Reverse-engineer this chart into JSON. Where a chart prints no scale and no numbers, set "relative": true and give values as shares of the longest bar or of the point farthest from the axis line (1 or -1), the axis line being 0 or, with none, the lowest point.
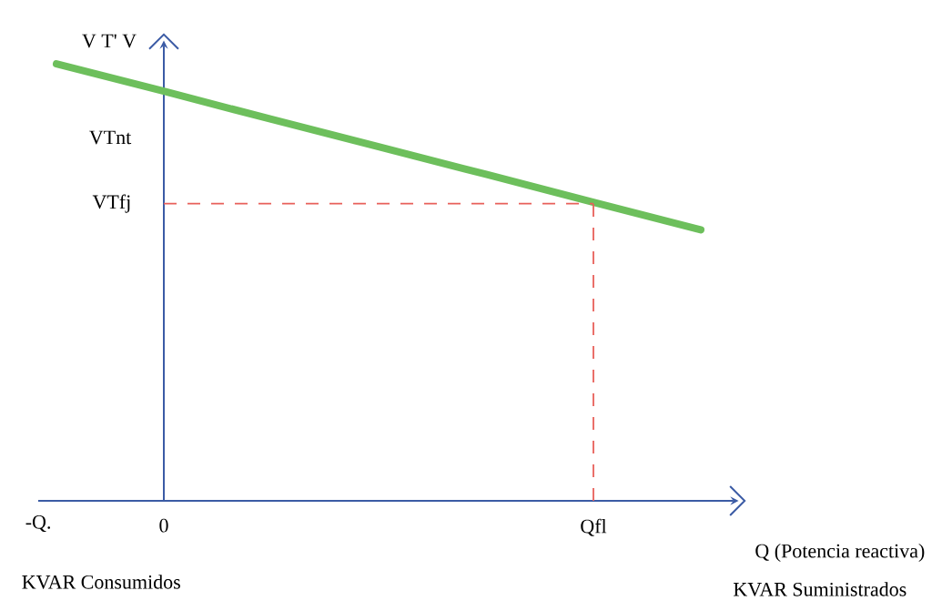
{
  "chart_data": {
    "type": "line",
    "relative": true,
    "ylabel": "V T' V",
    "xlabel": "Q  (Potencia reactiva)",
    "categories": [
      null,
      "0",
      null,
      null,
      null,
      "Qfl",
      null
    ],
    "series": [
      {
        "color": "#6dbf5c",
        "values": [
          1,
          0.937,
          0.873,
          0.81,
          0.747,
          0.683,
          0.62
        ]
      }
    ],
    "ref_lines": [
      {
        "axis": "y",
        "value": 0.68,
        "label": "VTfj",
        "color": "#e8605a",
        "line_style": "dashed"
      },
      {
        "axis": "x",
        "value": "Qfl",
        "color": "#e8605a",
        "line_style": "dashed"
      }
    ],
    "annotations": [
      "VTnt",
      "-Q.",
      "KVAR Consumidos",
      "KVAR Suministrados"
    ]
  }
}
